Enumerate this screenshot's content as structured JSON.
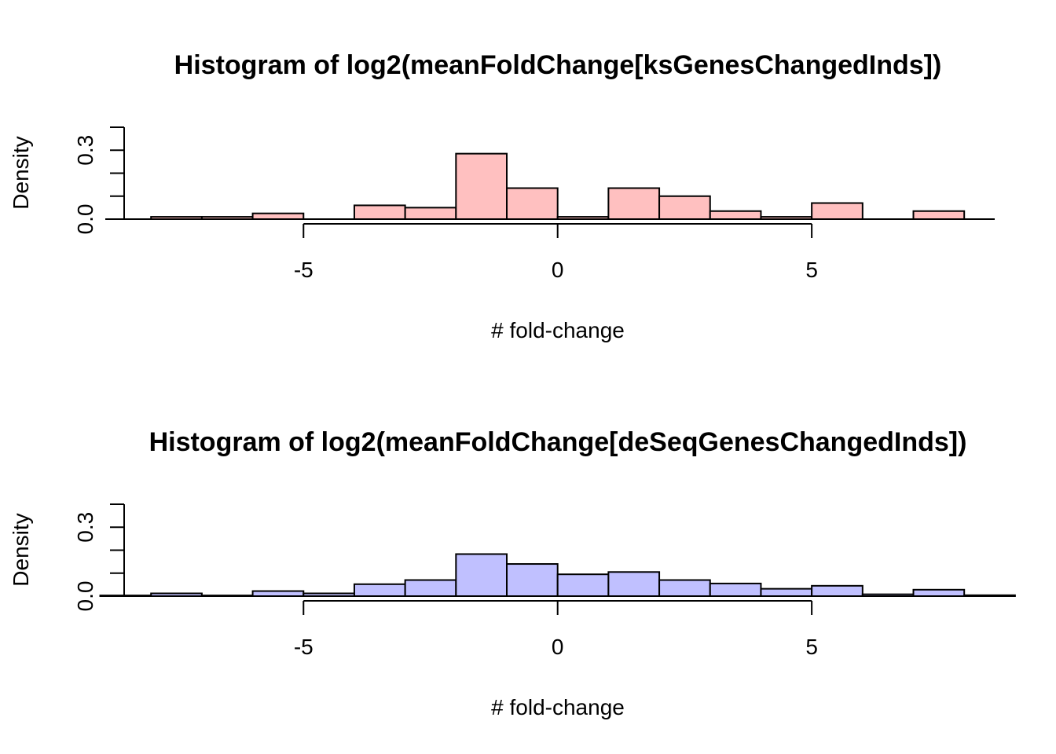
{
  "chart_data": [
    {
      "type": "bar",
      "title": "Histogram of log2(meanFoldChange[ksGenesChangedInds])",
      "xlabel": "# fold-change",
      "ylabel": "Density",
      "fill": "#FFC0C0",
      "x_ticks": [
        -5,
        0,
        5
      ],
      "x_tick_labels": [
        "-5",
        "0",
        "5"
      ],
      "y_ticks": [
        0.0,
        0.3
      ],
      "y_tick_labels": [
        "0.0",
        "0.3"
      ],
      "y_minor_ticks": [
        0.0,
        0.1,
        0.2,
        0.3,
        0.4
      ],
      "x_axis_range": [
        -5,
        5
      ],
      "xlim": [
        -8.9,
        8.6
      ],
      "ylim": [
        0,
        0.4
      ],
      "bins": [
        {
          "x0": -8,
          "x1": -7,
          "value": 0.01
        },
        {
          "x0": -7,
          "x1": -6,
          "value": 0.01
        },
        {
          "x0": -6,
          "x1": -5,
          "value": 0.025
        },
        {
          "x0": -5,
          "x1": -4,
          "value": 0.0
        },
        {
          "x0": -4,
          "x1": -3,
          "value": 0.06
        },
        {
          "x0": -3,
          "x1": -2,
          "value": 0.05
        },
        {
          "x0": -2,
          "x1": -1,
          "value": 0.285
        },
        {
          "x0": -1,
          "x1": 0,
          "value": 0.135
        },
        {
          "x0": 0,
          "x1": 1,
          "value": 0.01
        },
        {
          "x0": 1,
          "x1": 2,
          "value": 0.135
        },
        {
          "x0": 2,
          "x1": 3,
          "value": 0.1
        },
        {
          "x0": 3,
          "x1": 4,
          "value": 0.035
        },
        {
          "x0": 4,
          "x1": 5,
          "value": 0.01
        },
        {
          "x0": 5,
          "x1": 6,
          "value": 0.07
        },
        {
          "x0": 6,
          "x1": 7,
          "value": 0.0
        },
        {
          "x0": 7,
          "x1": 8,
          "value": 0.035
        }
      ]
    },
    {
      "type": "bar",
      "title": "Histogram of log2(meanFoldChange[deSeqGenesChangedInds])",
      "xlabel": "# fold-change",
      "ylabel": "Density",
      "fill": "#C0C0FF",
      "x_ticks": [
        -5,
        0,
        5
      ],
      "x_tick_labels": [
        "-5",
        "0",
        "5"
      ],
      "y_ticks": [
        0.0,
        0.3
      ],
      "y_tick_labels": [
        "0.0",
        "0.3"
      ],
      "y_minor_ticks": [
        0.0,
        0.1,
        0.2,
        0.3,
        0.4
      ],
      "x_axis_range": [
        -5,
        5
      ],
      "xlim": [
        -8.9,
        8.6
      ],
      "ylim": [
        0,
        0.4
      ],
      "bins": [
        {
          "x0": -9,
          "x1": -8,
          "value": 0.003
        },
        {
          "x0": -8,
          "x1": -7,
          "value": 0.012
        },
        {
          "x0": -7,
          "x1": -6,
          "value": 0.003
        },
        {
          "x0": -6,
          "x1": -5,
          "value": 0.022
        },
        {
          "x0": -5,
          "x1": -4,
          "value": 0.012
        },
        {
          "x0": -4,
          "x1": -3,
          "value": 0.052
        },
        {
          "x0": -3,
          "x1": -2,
          "value": 0.07
        },
        {
          "x0": -2,
          "x1": -1,
          "value": 0.183
        },
        {
          "x0": -1,
          "x1": 0,
          "value": 0.14
        },
        {
          "x0": 0,
          "x1": 1,
          "value": 0.095
        },
        {
          "x0": 1,
          "x1": 2,
          "value": 0.105
        },
        {
          "x0": 2,
          "x1": 3,
          "value": 0.07
        },
        {
          "x0": 3,
          "x1": 4,
          "value": 0.055
        },
        {
          "x0": 4,
          "x1": 5,
          "value": 0.032
        },
        {
          "x0": 5,
          "x1": 6,
          "value": 0.045
        },
        {
          "x0": 6,
          "x1": 7,
          "value": 0.008
        },
        {
          "x0": 7,
          "x1": 8,
          "value": 0.028
        },
        {
          "x0": 8,
          "x1": 9,
          "value": 0.004
        }
      ]
    }
  ]
}
